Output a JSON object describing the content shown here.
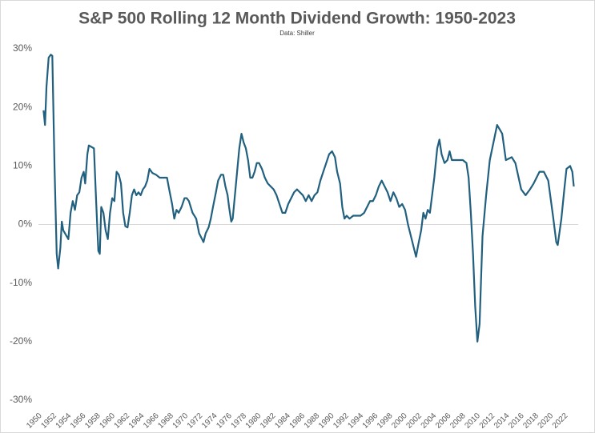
{
  "chart_data": {
    "type": "line",
    "title": "S&P 500 Rolling 12 Month Dividend Growth: 1950-2023",
    "subtitle": "Data: Shiller",
    "xlim": [
      1949.7,
      2023.6
    ],
    "xticks": [
      1950,
      1952,
      1954,
      1956,
      1958,
      1960,
      1962,
      1964,
      1966,
      1968,
      1970,
      1972,
      1974,
      1976,
      1978,
      1980,
      1982,
      1984,
      1986,
      1988,
      1990,
      1992,
      1994,
      1996,
      1998,
      2000,
      2002,
      2004,
      2006,
      2008,
      2010,
      2012,
      2014,
      2016,
      2018,
      2020,
      2022
    ],
    "ylim": [
      -30,
      30
    ],
    "yticks": [
      {
        "value": -30,
        "label": "-30%"
      },
      {
        "value": -20,
        "label": "-20%"
      },
      {
        "value": -10,
        "label": "-10%"
      },
      {
        "value": 0,
        "label": "0%"
      },
      {
        "value": 10,
        "label": "10%"
      },
      {
        "value": 20,
        "label": "20%"
      },
      {
        "value": 30,
        "label": "30%"
      }
    ],
    "zero_line": true,
    "x": [
      1950.4,
      1950.6,
      1950.8,
      1951.1,
      1951.4,
      1951.6,
      1951.9,
      1952.2,
      1952.4,
      1952.7,
      1952.9,
      1953.1,
      1953.8,
      1954.1,
      1954.4,
      1954.7,
      1955.0,
      1955.3,
      1955.6,
      1955.9,
      1956.1,
      1956.4,
      1956.6,
      1957.3,
      1957.6,
      1957.9,
      1958.1,
      1958.3,
      1958.6,
      1958.9,
      1959.2,
      1959.5,
      1959.8,
      1960.1,
      1960.4,
      1960.7,
      1961.0,
      1961.3,
      1961.6,
      1961.9,
      1962.2,
      1962.5,
      1962.8,
      1963.1,
      1963.4,
      1963.7,
      1964.0,
      1964.3,
      1964.6,
      1964.9,
      1965.3,
      1965.8,
      1966.3,
      1966.8,
      1967.3,
      1967.6,
      1968.0,
      1968.3,
      1968.6,
      1968.9,
      1969.3,
      1969.7,
      1970.0,
      1970.3,
      1970.8,
      1971.3,
      1971.7,
      1972.1,
      1972.3,
      1972.6,
      1973.0,
      1973.3,
      1973.6,
      1974.0,
      1974.3,
      1974.7,
      1975.0,
      1975.3,
      1975.6,
      1975.8,
      1976.1,
      1976.3,
      1976.6,
      1976.9,
      1977.2,
      1977.5,
      1977.8,
      1978.1,
      1978.4,
      1978.7,
      1979.0,
      1979.3,
      1979.6,
      1979.9,
      1980.3,
      1980.7,
      1981.1,
      1981.5,
      1981.9,
      1982.3,
      1982.7,
      1983.1,
      1983.5,
      1983.9,
      1984.3,
      1984.7,
      1985.1,
      1985.5,
      1985.9,
      1986.3,
      1986.7,
      1987.1,
      1987.5,
      1987.9,
      1988.3,
      1988.7,
      1989.1,
      1989.5,
      1989.9,
      1990.3,
      1990.6,
      1991.0,
      1991.3,
      1991.6,
      1991.9,
      1992.3,
      1992.8,
      1993.3,
      1993.8,
      1994.3,
      1994.7,
      1995.1,
      1995.5,
      1995.9,
      1996.3,
      1996.7,
      1997.1,
      1997.5,
      1997.9,
      1998.3,
      1998.7,
      1999.1,
      1999.5,
      1999.9,
      2000.3,
      2000.7,
      2001.1,
      2001.4,
      2001.7,
      2002.1,
      2002.4,
      2002.7,
      2003.0,
      2003.3,
      2003.6,
      2003.9,
      2004.3,
      2004.6,
      2004.9,
      2005.3,
      2005.7,
      2006.0,
      2006.3,
      2006.8,
      2007.3,
      2007.8,
      2008.3,
      2008.6,
      2008.9,
      2009.2,
      2009.5,
      2009.8,
      2010.1,
      2010.5,
      2011.0,
      2011.5,
      2012.5,
      2013.2,
      2013.7,
      2014.5,
      2015.0,
      2015.8,
      2016.4,
      2017.0,
      2017.5,
      2018.3,
      2018.9,
      2019.5,
      2020.2,
      2020.6,
      2020.8,
      2021.3,
      2021.7,
      2022.0,
      2022.5,
      2022.8,
      2023.0
    ],
    "series": [
      {
        "color": "#22607f",
        "values": [
          19.5,
          17,
          23.5,
          28.5,
          29,
          28.8,
          10,
          -5,
          -7.5,
          -4,
          0.5,
          -1,
          -2.5,
          2,
          4,
          2.5,
          5,
          5.5,
          8,
          9,
          7,
          12,
          13.5,
          13,
          4,
          -4.5,
          -5,
          3,
          2,
          -1,
          -2.5,
          2,
          4.5,
          4,
          9,
          8.5,
          7,
          2,
          -0.3,
          -0.5,
          2,
          5,
          6,
          5,
          5.5,
          5,
          6,
          6.5,
          7.5,
          9.5,
          8.8,
          8.5,
          8,
          8,
          8,
          6,
          3.5,
          1,
          2.5,
          2,
          3,
          4.5,
          4.5,
          4,
          2,
          1,
          -1.5,
          -2.5,
          -3,
          -1.5,
          -0.5,
          1,
          3,
          5.5,
          7.5,
          8.5,
          8.5,
          6.5,
          5,
          3,
          0.5,
          1,
          5,
          9,
          13,
          15.5,
          14,
          13,
          11,
          8,
          8,
          9,
          10.5,
          10.5,
          9.5,
          8,
          7,
          6.5,
          6,
          5,
          3.5,
          2,
          2,
          3.5,
          4.5,
          5.5,
          6,
          5.5,
          5,
          4,
          5,
          4,
          5,
          5.5,
          7.5,
          9,
          10.5,
          12,
          12.5,
          11.5,
          9,
          7,
          3,
          1,
          1.5,
          1,
          1.5,
          1.5,
          1.5,
          2,
          3,
          4,
          4,
          5,
          6.5,
          7.5,
          6.5,
          5.5,
          4,
          5.5,
          4.5,
          3,
          3.5,
          2.5,
          0,
          -2,
          -4,
          -5.5,
          -3.5,
          -1,
          2,
          1,
          2.5,
          2,
          5,
          8,
          13,
          14.5,
          12,
          10.5,
          11,
          12.5,
          11,
          11,
          11,
          11,
          10.5,
          8,
          2,
          -5,
          -14,
          -20,
          -17,
          -2,
          5,
          11,
          17,
          15.5,
          11,
          11.5,
          10.5,
          6,
          5,
          6,
          7,
          9,
          9,
          7.5,
          1,
          -3,
          -3.5,
          1,
          6,
          9.5,
          10,
          9,
          6.5
        ]
      }
    ]
  }
}
